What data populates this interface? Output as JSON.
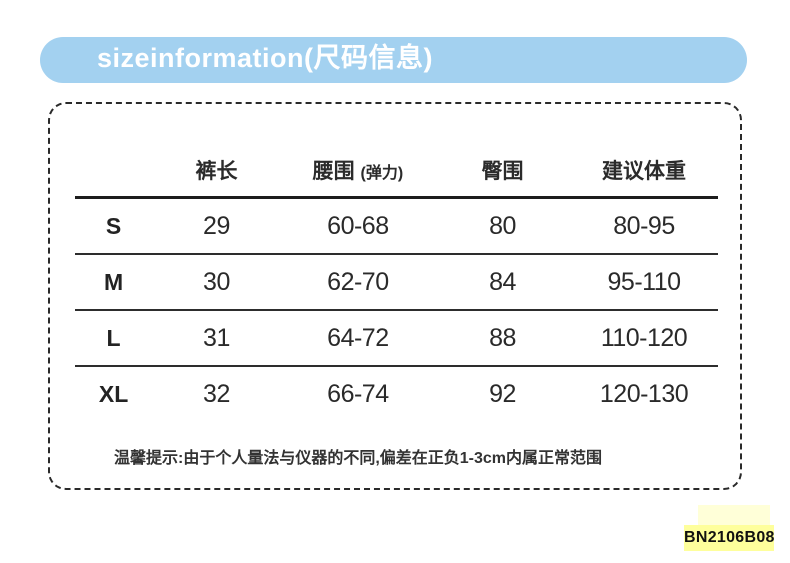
{
  "header": {
    "title": "sizeinformation(尺码信息)"
  },
  "size_table": {
    "col_size_header": "",
    "col_pants_length": "裤长",
    "col_waist_main": "腰围",
    "col_waist_sub": "(弹力)",
    "col_hip": "臀围",
    "col_weight": "建议体重",
    "rows": [
      {
        "size": "S",
        "pants_length": "29",
        "waist": "60-68",
        "hip": "80",
        "weight": "80-95"
      },
      {
        "size": "M",
        "pants_length": "30",
        "waist": "62-70",
        "hip": "84",
        "weight": "95-110"
      },
      {
        "size": "L",
        "pants_length": "31",
        "waist": "64-72",
        "hip": "88",
        "weight": "110-120"
      },
      {
        "size": "XL",
        "pants_length": "32",
        "waist": "66-74",
        "hip": "92",
        "weight": "120-130"
      }
    ],
    "note": "温馨提示:由于个人量法与仪器的不同,偏差在正负1-3cm内属正常范围"
  },
  "footer": {
    "product_code": "BN2106B08"
  },
  "colors": {
    "accent_blue": "#a3d1f0",
    "highlight_yellow": "#feff9c",
    "text_dark": "#2a2a2a"
  }
}
